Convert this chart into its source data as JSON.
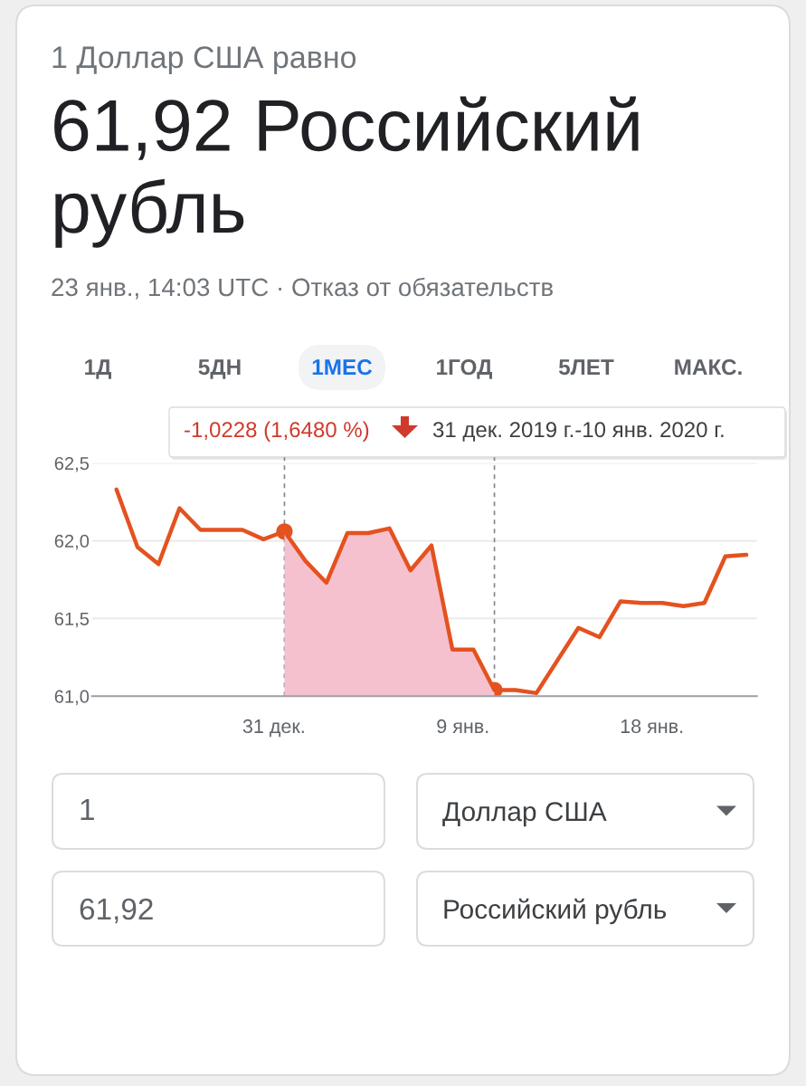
{
  "chart_data": {
    "type": "line",
    "title": "61,92 Российский рубль",
    "subtitle": "23 янв., 14:03 UTC · Отказ от обязательств",
    "annotations": [
      "1 Доллар США равно",
      "1Д",
      "5ДН",
      "1МЕС",
      "1ГОД",
      "5ЛЕТ",
      "МАКС.",
      "-1,0228 (1,6480 %)",
      "31 дек. 2019 г.-10 янв. 2020 г.",
      "1",
      "Доллар США",
      "61,92",
      "Российский рубль"
    ],
    "series": [
      {
        "type": "area",
        "color": "#f6c1cf",
        "x": [
          "2019-12-31T12:00",
          "2020-01-01T12:00",
          "2020-01-02T12:00",
          "2020-01-03T12:00",
          "2020-01-04T12:00",
          "2020-01-05T12:00",
          "2020-01-06T12:00",
          "2020-01-07T12:00",
          "2020-01-08T12:00",
          "2020-01-09T12:00",
          "2020-01-10T12:00"
        ],
        "values": [
          62.06,
          61.87,
          61.73,
          62.05,
          62.05,
          62.08,
          61.81,
          61.97,
          61.3,
          61.3,
          61.04
        ]
      },
      {
        "color": "#e4521f",
        "line_style": "solid",
        "x": [
          "2019-12-23T12:00",
          "2019-12-24T12:00",
          "2019-12-25T12:00",
          "2019-12-26T12:00",
          "2019-12-27T12:00",
          "2019-12-28T12:00",
          "2019-12-29T12:00",
          "2019-12-30T12:00",
          "2019-12-31T12:00",
          "2020-01-01T12:00",
          "2020-01-02T12:00",
          "2020-01-03T12:00",
          "2020-01-04T12:00",
          "2020-01-05T12:00",
          "2020-01-06T12:00",
          "2020-01-07T12:00",
          "2020-01-08T12:00",
          "2020-01-09T12:00",
          "2020-01-10T12:00",
          "2020-01-11T12:00",
          "2020-01-12T12:00",
          "2020-01-13T12:00",
          "2020-01-14T12:00",
          "2020-01-15T12:00",
          "2020-01-16T12:00",
          "2020-01-17T12:00",
          "2020-01-18T12:00",
          "2020-01-19T12:00",
          "2020-01-20T12:00",
          "2020-01-21T12:00",
          "2020-01-22T12:00"
        ],
        "values": [
          62.33,
          61.96,
          61.85,
          62.21,
          62.07,
          62.07,
          62.07,
          62.01,
          62.06,
          61.87,
          61.73,
          62.05,
          62.05,
          62.08,
          61.81,
          61.97,
          61.3,
          61.3,
          61.04,
          61.04,
          61.02,
          61.23,
          61.44,
          61.38,
          61.61,
          61.6,
          61.6,
          61.58,
          61.6,
          61.9,
          61.91
        ]
      },
      {
        "type": "scatter",
        "color": "#e4521f",
        "marker": "circle",
        "x": [
          "2019-12-31T12:00",
          "2020-01-10T12:00"
        ],
        "values": [
          62.06,
          61.04
        ]
      }
    ],
    "xlim": [
      "2019-12-22T08:00",
      "2020-01-23T00:00"
    ],
    "xticks": [
      {
        "value": "2019-12-31",
        "label": "31 дек."
      },
      {
        "value": "2020-01-09",
        "label": "9 янв."
      },
      {
        "value": "2020-01-18",
        "label": "18 янв."
      }
    ],
    "ylim": [
      61.0,
      62.5
    ],
    "yticks": [
      {
        "value": 61.0,
        "label": "61,0"
      },
      {
        "value": 61.5,
        "label": "61,5"
      },
      {
        "value": 62.0,
        "label": "62,0"
      },
      {
        "value": 62.5,
        "label": "62,5"
      }
    ],
    "ref_lines": [
      {
        "axis": "x",
        "value": "2019-12-31T12:00",
        "line_style": "dashed",
        "color": "#80868b"
      },
      {
        "axis": "x",
        "value": "2020-01-10T12:00",
        "line_style": "dashed",
        "color": "#80868b"
      }
    ],
    "grid": "y"
  }
}
